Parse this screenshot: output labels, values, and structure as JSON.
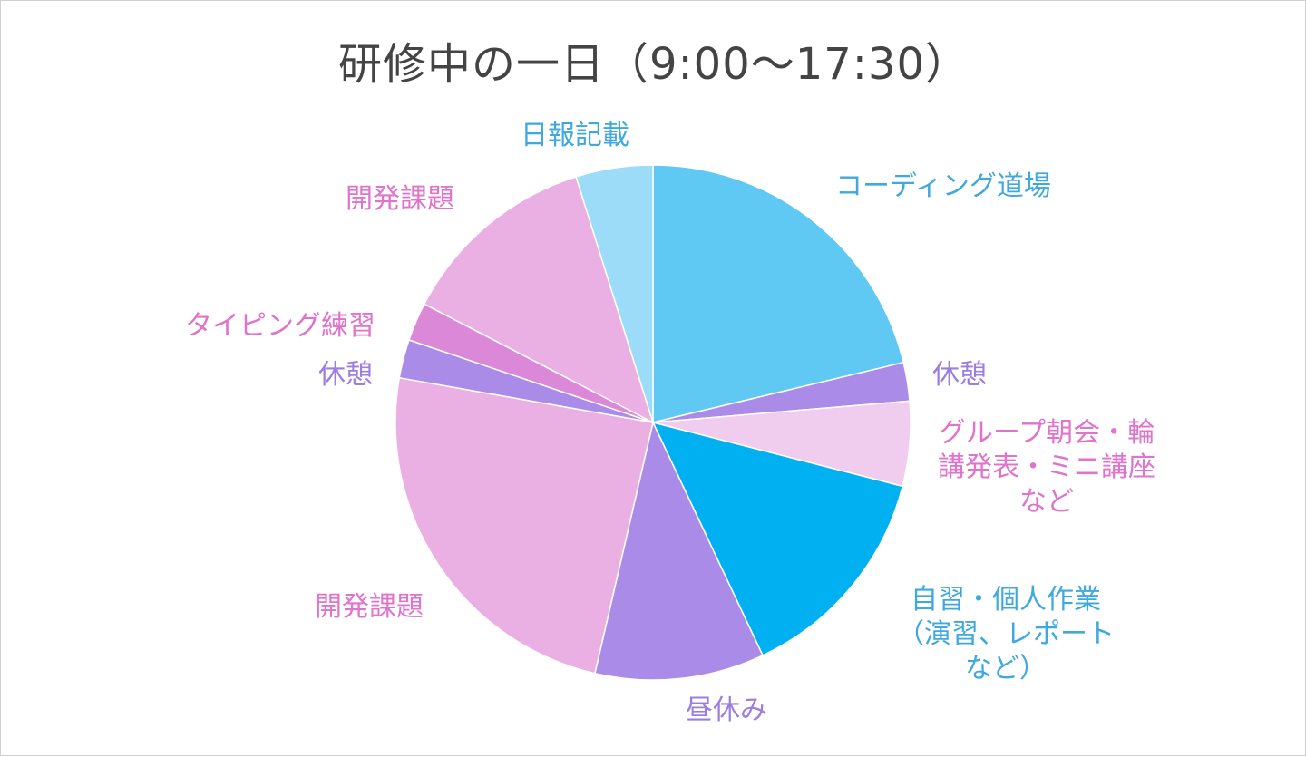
{
  "chart_data": {
    "type": "pie",
    "title": "研修中の一日（9:00～17:30）",
    "start": "top",
    "direction": "clockwise",
    "slices": [
      {
        "label": "コーディング道場",
        "value": 22.0,
        "color": "#5FC9F3"
      },
      {
        "label": "休憩",
        "value": 2.5,
        "color": "#AA8BE8"
      },
      {
        "label": "グループ朝会・輪\n講発表・ミニ講座\nなど",
        "value": 5.5,
        "color": "#F0CCEE"
      },
      {
        "label": "自習・個人作業\n（演習、レポート\nなど）",
        "value": 14.5,
        "color": "#00B0F0"
      },
      {
        "label": "昼休み",
        "value": 11.0,
        "color": "#AA8BE8"
      },
      {
        "label": "開発課題",
        "value": 25.0,
        "color": "#EAB0E4"
      },
      {
        "label": "休憩",
        "value": 2.5,
        "color": "#AA8BE8"
      },
      {
        "label": "タイピング練習",
        "value": 2.5,
        "color": "#DC88D8"
      },
      {
        "label": "開発課題",
        "value": 13.0,
        "color": "#EAB0E4"
      },
      {
        "label": "日報記載",
        "value": 5.0,
        "color": "#9CDCF8"
      }
    ],
    "label_colors": [
      "#3EA8DF",
      "#9C7EE0",
      "#E073CC",
      "#3EA8DF",
      "#9C7EE0",
      "#E073CC",
      "#9C7EE0",
      "#E073CC",
      "#E073CC",
      "#3EA8DF"
    ]
  }
}
